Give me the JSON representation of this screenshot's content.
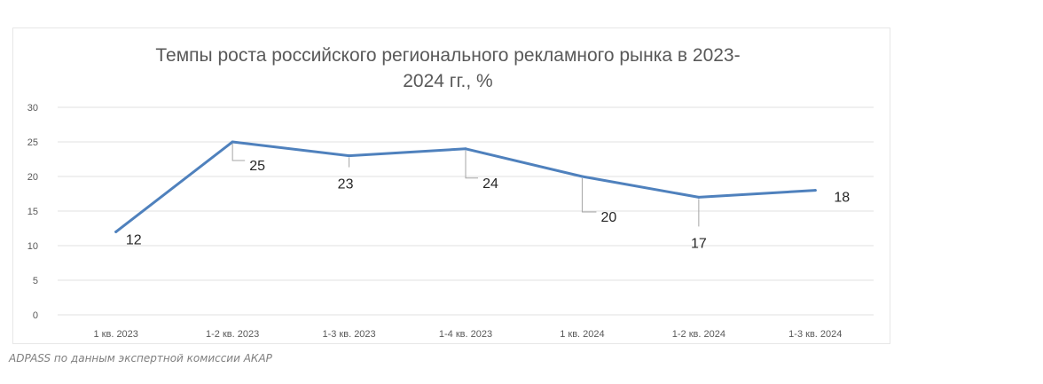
{
  "source_note": "ADPASS по данным экспертной комиссии АКАР",
  "colors": {
    "series_line": "#4f81bd",
    "gridline": "#e0e0e0",
    "leader_line": "#a6a6a6"
  },
  "chart_data": {
    "type": "line",
    "title": "Темпы роста российского регионального рекламного рынка в 2023-2024 гг., %",
    "title_lines": [
      "Темпы роста российского регионального рекламного рынка в 2023-",
      "2024 гг., %"
    ],
    "categories": [
      "1 кв. 2023",
      "1-2 кв. 2023",
      "1-3 кв. 2023",
      "1-4 кв. 2023",
      "1 кв. 2024",
      "1-2 кв. 2024",
      "1-3 кв. 2024"
    ],
    "series": [
      {
        "values": [
          12,
          25,
          23,
          24,
          20,
          17,
          18
        ]
      }
    ],
    "data_labels": [
      "12",
      "25",
      "23",
      "24",
      "20",
      "17",
      "18"
    ],
    "y_ticks": [
      "0",
      "5",
      "10",
      "15",
      "20",
      "25",
      "30"
    ],
    "ylim": [
      0,
      30
    ],
    "grid": true,
    "legend": "none",
    "xlabel": "",
    "ylabel": ""
  }
}
